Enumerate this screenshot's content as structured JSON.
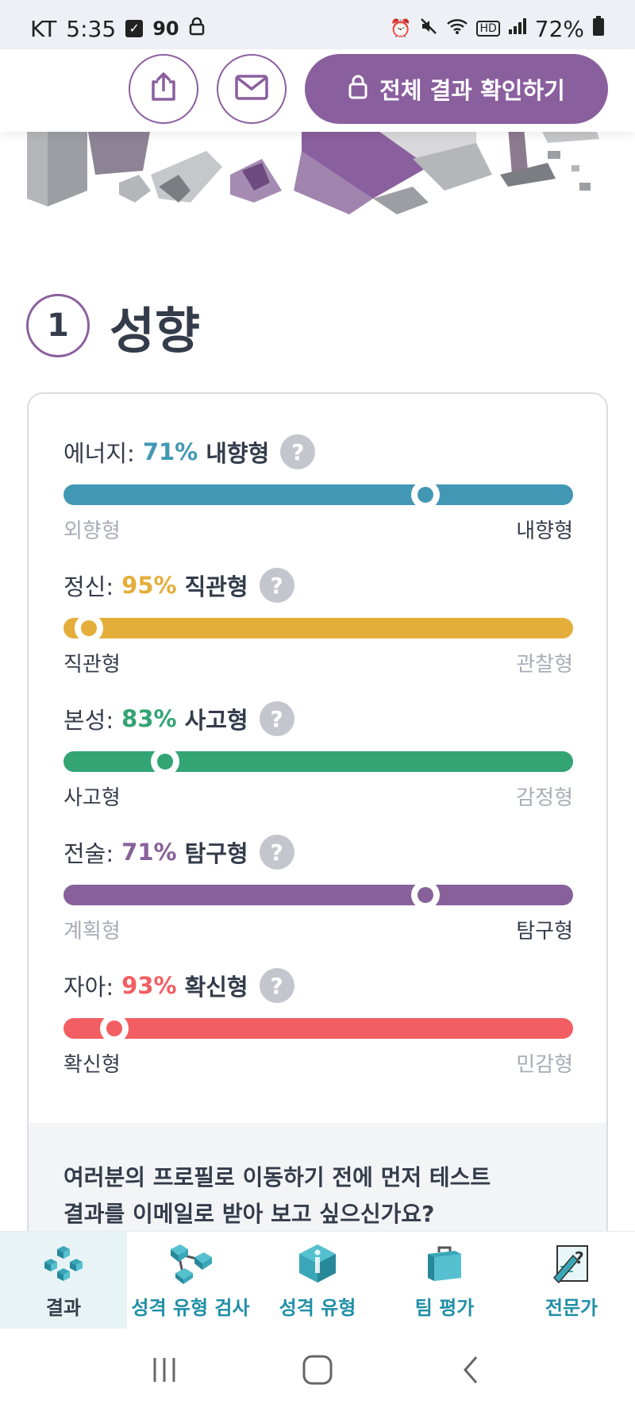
{
  "status_bar": {
    "carrier": "KT",
    "time": "5:35",
    "badge": "90",
    "battery": "72%"
  },
  "actions": {
    "share_icon": "share-icon",
    "mail_icon": "mail-icon",
    "cta_label": "전체 결과 확인하기",
    "cta_icon": "lock-icon"
  },
  "section": {
    "number": "1",
    "title": "성향"
  },
  "traits": [
    {
      "name": "에너지:",
      "percent": "71%",
      "type": "내향형",
      "color": "#4298b4",
      "left": "외향형",
      "right": "내향형",
      "active_side": "right",
      "knob_fraction": 0.71
    },
    {
      "name": "정신:",
      "percent": "95%",
      "type": "직관형",
      "color": "#e4ae3a",
      "left": "직관형",
      "right": "관찰형",
      "active_side": "left",
      "knob_fraction": 0.05
    },
    {
      "name": "본성:",
      "percent": "83%",
      "type": "사고형",
      "color": "#33a474",
      "left": "사고형",
      "right": "감정형",
      "active_side": "left",
      "knob_fraction": 0.2
    },
    {
      "name": "전술:",
      "percent": "71%",
      "type": "탐구형",
      "color": "#88619a",
      "left": "계획형",
      "right": "탐구형",
      "active_side": "right",
      "knob_fraction": 0.71
    },
    {
      "name": "자아:",
      "percent": "93%",
      "type": "확신형",
      "color": "#f25e62",
      "left": "확신형",
      "right": "민감형",
      "active_side": "left",
      "knob_fraction": 0.1
    }
  ],
  "email_prompt": {
    "line1": "여러분의 프로필로 이동하기 전에 먼저 테스트",
    "line2": "결과를 이메일로 받아 보고 싶으신가요?"
  },
  "bottom_nav": [
    {
      "label": "결과",
      "icon": "cubes-icon",
      "active": true
    },
    {
      "label": "성격 유형 검사",
      "icon": "network-icon",
      "active": false
    },
    {
      "label": "성격 유형",
      "icon": "info-cube-icon",
      "active": false
    },
    {
      "label": "팀 평가",
      "icon": "briefcase-icon",
      "active": false
    },
    {
      "label": "전문가",
      "icon": "document-question-icon",
      "active": false
    }
  ],
  "help_symbol": "?"
}
